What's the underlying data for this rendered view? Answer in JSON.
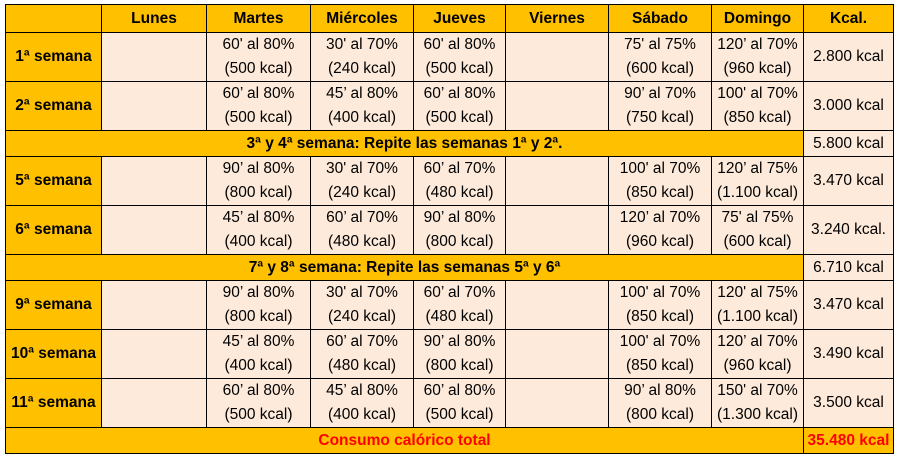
{
  "headers": [
    "",
    "Lunes",
    "Martes",
    "Miércoles",
    "Jueves",
    "Viernes",
    "Sábado",
    "Domingo",
    "Kcal."
  ],
  "rows": [
    {
      "type": "week",
      "label": "1ª semana",
      "cells": [
        [
          "",
          ""
        ],
        [
          "60' al 80%",
          "(500 kcal)"
        ],
        [
          "30' al 70%",
          "(240 kcal)"
        ],
        [
          "60' al 80%",
          "(500 kcal)"
        ],
        [
          "",
          ""
        ],
        [
          "75' al 75%",
          "(600 kcal)"
        ],
        [
          "120’ al 70%",
          "(960 kcal)"
        ]
      ],
      "kcal": "2.800 kcal"
    },
    {
      "type": "week",
      "label": "2ª semana",
      "cells": [
        [
          "",
          ""
        ],
        [
          "60’ al 80%",
          "(500 kcal)"
        ],
        [
          "45’ al 80%",
          "(400 kcal)"
        ],
        [
          "60’ al 80%",
          "(500 kcal)"
        ],
        [
          "",
          ""
        ],
        [
          "90’ al 70%",
          "(750 kcal)"
        ],
        [
          "100' al 70%",
          "(850 kcal)"
        ]
      ],
      "kcal": "3.000 kcal"
    },
    {
      "type": "banner",
      "text": "3ª y 4ª semana: Repite las semanas 1ª y 2ª.",
      "kcal": "5.800 kcal"
    },
    {
      "type": "week",
      "label": "5ª semana",
      "cells": [
        [
          "",
          ""
        ],
        [
          "90’ al 80%",
          "(800 kcal)"
        ],
        [
          "30' al 70%",
          "(240 kcal)"
        ],
        [
          "60’ al 70%",
          "(480 kcal)"
        ],
        [
          "",
          ""
        ],
        [
          "100' al 70%",
          "(850 kcal)"
        ],
        [
          "120’ al 75%",
          "(1.100 kcal)"
        ]
      ],
      "kcal": "3.470 kcal"
    },
    {
      "type": "week",
      "label": "6ª semana",
      "cells": [
        [
          "",
          ""
        ],
        [
          "45’ al 80%",
          "(400 kcal)"
        ],
        [
          "60’ al 70%",
          "(480 kcal)"
        ],
        [
          "90’ al 80%",
          "(800 kcal)"
        ],
        [
          "",
          ""
        ],
        [
          "120’ al 70%",
          "(960 kcal)"
        ],
        [
          "75' al 75%",
          "(600 kcal)"
        ]
      ],
      "kcal": "3.240 kcal."
    },
    {
      "type": "banner",
      "text": "7ª y 8ª semana: Repite las semanas 5ª y 6ª",
      "kcal": "6.710 kcal"
    },
    {
      "type": "week",
      "label": "9ª semana",
      "cells": [
        [
          "",
          ""
        ],
        [
          "90’ al 80%",
          "(800 kcal)"
        ],
        [
          "30' al 70%",
          "(240 kcal)"
        ],
        [
          "60’ al 70%",
          "(480 kcal)"
        ],
        [
          "",
          ""
        ],
        [
          "100' al 70%",
          "(850 kcal)"
        ],
        [
          "120' al 75%",
          "(1.100 kcal)"
        ]
      ],
      "kcal": "3.470 kcal"
    },
    {
      "type": "week",
      "label": "10ª semana",
      "cells": [
        [
          "",
          ""
        ],
        [
          "45’ al 80%",
          "(400 kcal)"
        ],
        [
          "60’ al 70%",
          "(480 kcal)"
        ],
        [
          "90’ al 80%",
          "(800 kcal)"
        ],
        [
          "",
          ""
        ],
        [
          "100' al 70%",
          "(850 kcal)"
        ],
        [
          "120’ al 70%",
          "(960 kcal)"
        ]
      ],
      "kcal": "3.490 kcal"
    },
    {
      "type": "week",
      "label": "11ª semana",
      "cells": [
        [
          "",
          ""
        ],
        [
          "60’ al 80%",
          "(500 kcal)"
        ],
        [
          "45’ al 80%",
          "(400 kcal)"
        ],
        [
          "60’ al 80%",
          "(500 kcal)"
        ],
        [
          "",
          ""
        ],
        [
          "90’ al 80%",
          "(800 kcal)"
        ],
        [
          "150' al 70%",
          "(1.300 kcal)"
        ]
      ],
      "kcal": "3.500 kcal"
    },
    {
      "type": "total",
      "text": "Consumo calórico total",
      "kcal": "35.480 kcal"
    }
  ],
  "colors": {
    "header": "#ffc000",
    "cell": "#fdeada",
    "total_text": "#ff0000"
  }
}
